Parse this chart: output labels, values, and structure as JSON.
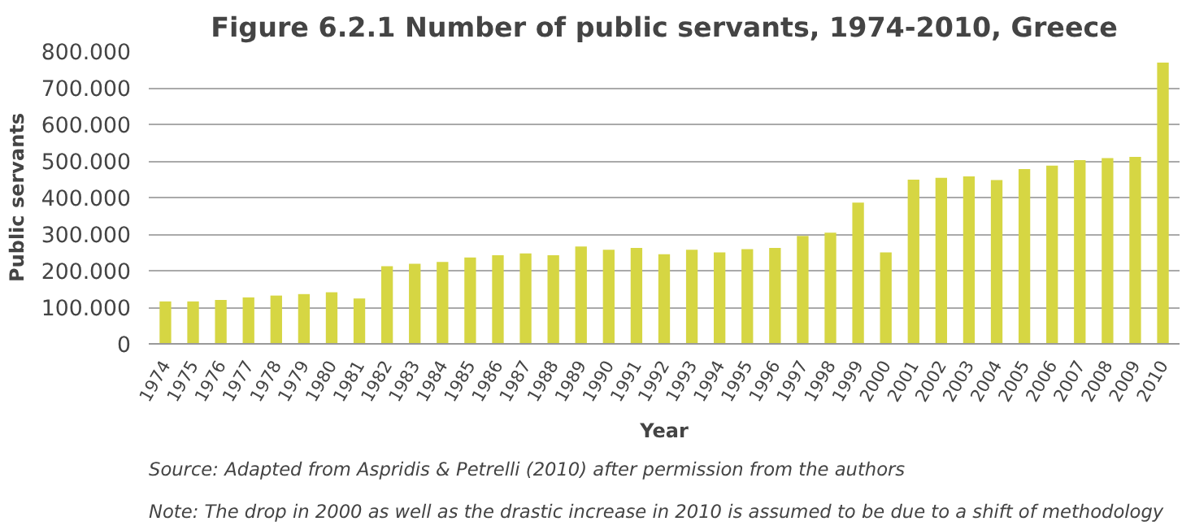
{
  "chart_data": {
    "type": "bar",
    "title": "Figure 6.2.1 Number of public servants, 1974-2010, Greece",
    "xlabel": "Year",
    "ylabel": "Public servants",
    "categories": [
      "1974",
      "1975",
      "1976",
      "1977",
      "1978",
      "1979",
      "1980",
      "1981",
      "1982",
      "1983",
      "1984",
      "1985",
      "1986",
      "1987",
      "1988",
      "1989",
      "1990",
      "1991",
      "1992",
      "1993",
      "1994",
      "1995",
      "1996",
      "1997",
      "1998",
      "1999",
      "2000",
      "2001",
      "2002",
      "2003",
      "2004",
      "2005",
      "2006",
      "2007",
      "2008",
      "2009",
      "2010"
    ],
    "values": [
      116000,
      116000,
      120000,
      127000,
      132000,
      136000,
      141000,
      124000,
      212000,
      219000,
      224000,
      236000,
      242000,
      247000,
      242000,
      266000,
      257000,
      262000,
      245000,
      257000,
      250000,
      259000,
      262000,
      295000,
      304000,
      386000,
      250000,
      449000,
      454000,
      458000,
      448000,
      478000,
      487000,
      502000,
      508000,
      511000,
      769000
    ],
    "color": "#d6d643",
    "ylim": [
      0,
      800000
    ],
    "yticks": [
      0,
      {
        "value": 100000,
        "label": "100.000"
      },
      {
        "value": 200000,
        "label": "200.000"
      },
      {
        "value": 300000,
        "label": "300.000"
      },
      {
        "value": 400000,
        "label": "400.000"
      },
      {
        "value": 500000,
        "label": "500.000"
      },
      {
        "value": 600000,
        "label": "600.000"
      },
      {
        "value": 700000,
        "label": "700.000"
      },
      {
        "value": 800000,
        "label": "800.000"
      }
    ],
    "grid": "y",
    "legend": false,
    "annotations": [
      "Source: Adapted from Aspridis & Petrelli (2010) after permission from the authors",
      "Note: The drop in 2000 as well as the drastic increase in 2010 is assumed to be due to a shift of methodology"
    ]
  }
}
